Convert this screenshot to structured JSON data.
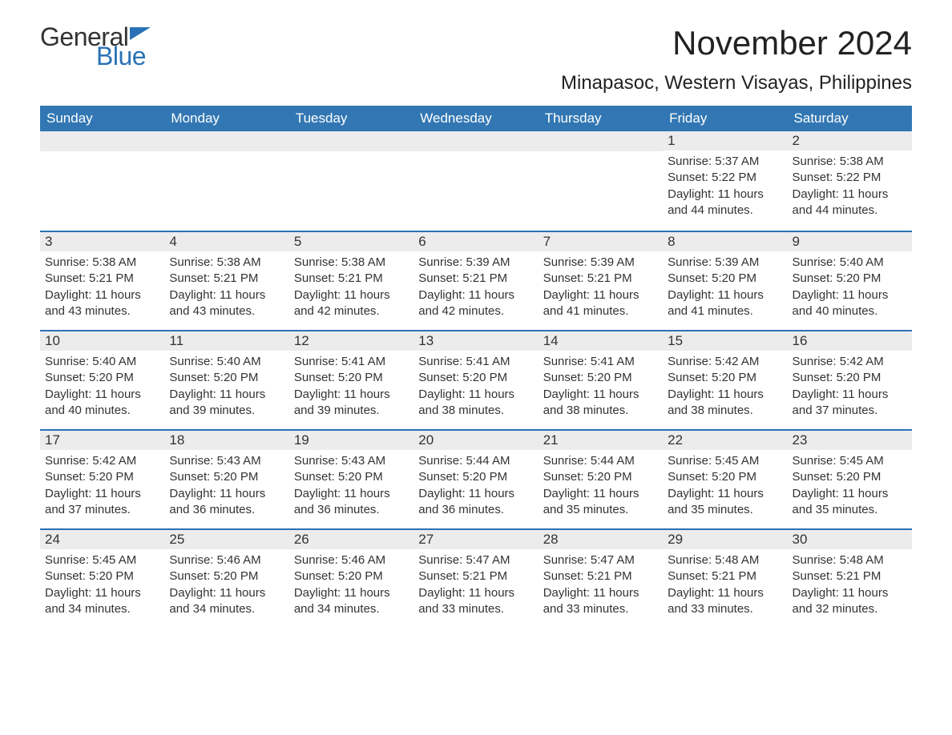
{
  "logo": {
    "text1": "General",
    "text2": "Blue",
    "brand_color": "#2a72b5"
  },
  "title": "November 2024",
  "subtitle": "Minapasoc, Western Visayas, Philippines",
  "header_bg": "#3277b3",
  "daynum_bg": "#ececec",
  "text_color": "#333333",
  "dow": [
    "Sunday",
    "Monday",
    "Tuesday",
    "Wednesday",
    "Thursday",
    "Friday",
    "Saturday"
  ],
  "weeks": [
    [
      null,
      null,
      null,
      null,
      null,
      {
        "n": "1",
        "sunrise": "5:37 AM",
        "sunset": "5:22 PM",
        "dl": "11 hours and 44 minutes."
      },
      {
        "n": "2",
        "sunrise": "5:38 AM",
        "sunset": "5:22 PM",
        "dl": "11 hours and 44 minutes."
      }
    ],
    [
      {
        "n": "3",
        "sunrise": "5:38 AM",
        "sunset": "5:21 PM",
        "dl": "11 hours and 43 minutes."
      },
      {
        "n": "4",
        "sunrise": "5:38 AM",
        "sunset": "5:21 PM",
        "dl": "11 hours and 43 minutes."
      },
      {
        "n": "5",
        "sunrise": "5:38 AM",
        "sunset": "5:21 PM",
        "dl": "11 hours and 42 minutes."
      },
      {
        "n": "6",
        "sunrise": "5:39 AM",
        "sunset": "5:21 PM",
        "dl": "11 hours and 42 minutes."
      },
      {
        "n": "7",
        "sunrise": "5:39 AM",
        "sunset": "5:21 PM",
        "dl": "11 hours and 41 minutes."
      },
      {
        "n": "8",
        "sunrise": "5:39 AM",
        "sunset": "5:20 PM",
        "dl": "11 hours and 41 minutes."
      },
      {
        "n": "9",
        "sunrise": "5:40 AM",
        "sunset": "5:20 PM",
        "dl": "11 hours and 40 minutes."
      }
    ],
    [
      {
        "n": "10",
        "sunrise": "5:40 AM",
        "sunset": "5:20 PM",
        "dl": "11 hours and 40 minutes."
      },
      {
        "n": "11",
        "sunrise": "5:40 AM",
        "sunset": "5:20 PM",
        "dl": "11 hours and 39 minutes."
      },
      {
        "n": "12",
        "sunrise": "5:41 AM",
        "sunset": "5:20 PM",
        "dl": "11 hours and 39 minutes."
      },
      {
        "n": "13",
        "sunrise": "5:41 AM",
        "sunset": "5:20 PM",
        "dl": "11 hours and 38 minutes."
      },
      {
        "n": "14",
        "sunrise": "5:41 AM",
        "sunset": "5:20 PM",
        "dl": "11 hours and 38 minutes."
      },
      {
        "n": "15",
        "sunrise": "5:42 AM",
        "sunset": "5:20 PM",
        "dl": "11 hours and 38 minutes."
      },
      {
        "n": "16",
        "sunrise": "5:42 AM",
        "sunset": "5:20 PM",
        "dl": "11 hours and 37 minutes."
      }
    ],
    [
      {
        "n": "17",
        "sunrise": "5:42 AM",
        "sunset": "5:20 PM",
        "dl": "11 hours and 37 minutes."
      },
      {
        "n": "18",
        "sunrise": "5:43 AM",
        "sunset": "5:20 PM",
        "dl": "11 hours and 36 minutes."
      },
      {
        "n": "19",
        "sunrise": "5:43 AM",
        "sunset": "5:20 PM",
        "dl": "11 hours and 36 minutes."
      },
      {
        "n": "20",
        "sunrise": "5:44 AM",
        "sunset": "5:20 PM",
        "dl": "11 hours and 36 minutes."
      },
      {
        "n": "21",
        "sunrise": "5:44 AM",
        "sunset": "5:20 PM",
        "dl": "11 hours and 35 minutes."
      },
      {
        "n": "22",
        "sunrise": "5:45 AM",
        "sunset": "5:20 PM",
        "dl": "11 hours and 35 minutes."
      },
      {
        "n": "23",
        "sunrise": "5:45 AM",
        "sunset": "5:20 PM",
        "dl": "11 hours and 35 minutes."
      }
    ],
    [
      {
        "n": "24",
        "sunrise": "5:45 AM",
        "sunset": "5:20 PM",
        "dl": "11 hours and 34 minutes."
      },
      {
        "n": "25",
        "sunrise": "5:46 AM",
        "sunset": "5:20 PM",
        "dl": "11 hours and 34 minutes."
      },
      {
        "n": "26",
        "sunrise": "5:46 AM",
        "sunset": "5:20 PM",
        "dl": "11 hours and 34 minutes."
      },
      {
        "n": "27",
        "sunrise": "5:47 AM",
        "sunset": "5:21 PM",
        "dl": "11 hours and 33 minutes."
      },
      {
        "n": "28",
        "sunrise": "5:47 AM",
        "sunset": "5:21 PM",
        "dl": "11 hours and 33 minutes."
      },
      {
        "n": "29",
        "sunrise": "5:48 AM",
        "sunset": "5:21 PM",
        "dl": "11 hours and 33 minutes."
      },
      {
        "n": "30",
        "sunrise": "5:48 AM",
        "sunset": "5:21 PM",
        "dl": "11 hours and 32 minutes."
      }
    ]
  ],
  "labels": {
    "sunrise": "Sunrise: ",
    "sunset": "Sunset: ",
    "daylight": "Daylight: "
  }
}
